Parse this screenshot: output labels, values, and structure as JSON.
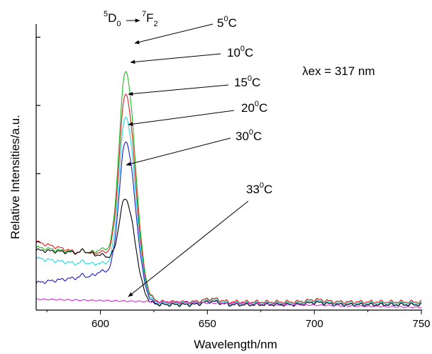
{
  "chart_data": {
    "type": "line",
    "xlabel": "Wavelength/nm",
    "ylabel": "Relative Intensities/a.u.",
    "xlim": [
      570,
      750
    ],
    "ylim": [
      0,
      1.1
    ],
    "x_ticks": [
      600,
      650,
      700,
      750
    ],
    "x_tick_labels": [
      "600",
      "650",
      "700",
      "750"
    ],
    "y_ticks": [
      0.25,
      0.5,
      0.75,
      1.0
    ],
    "y_tick_labels_shown": false,
    "grid": false,
    "transition_label": {
      "upper_level": "D",
      "upper_sup": "5",
      "upper_sub": "0",
      "lower_level": "F",
      "lower_sup": "7",
      "lower_sub": "2"
    },
    "excitation_label": {
      "prefix": "λex = ",
      "value": "317",
      "unit": " nm"
    },
    "series": [
      {
        "name": "5",
        "unit": "C",
        "deg_sup": "0",
        "color": "#22bb22",
        "peak": 1.02,
        "base600": 0.22,
        "baseline_left": 0.23,
        "shoulder": 0.21,
        "tail": 0.03
      },
      {
        "name": "10",
        "unit": "C",
        "deg_sup": "0",
        "color": "#dd2222",
        "peak": 0.93,
        "base600": 0.21,
        "baseline_left": 0.25,
        "shoulder": 0.21,
        "tail": 0.03
      },
      {
        "name": "15",
        "unit": "C",
        "deg_sup": "0",
        "color": "#22dddd",
        "peak": 0.82,
        "base600": 0.17,
        "baseline_left": 0.19,
        "shoulder": 0.17,
        "tail": 0.025
      },
      {
        "name": "20",
        "unit": "C",
        "deg_sup": "0",
        "color": "#1a1acc",
        "peak": 0.71,
        "base600": 0.14,
        "baseline_left": 0.1,
        "shoulder": 0.12,
        "tail": 0.02
      },
      {
        "name": "30",
        "unit": "C",
        "deg_sup": "0",
        "color": "#000000",
        "peak": 0.54,
        "base600": 0.2,
        "baseline_left": 0.22,
        "shoulder": 0.21,
        "tail": 0.02
      },
      {
        "name": "33",
        "unit": "C",
        "deg_sup": "0",
        "color": "#dd22dd",
        "peak": 0.025,
        "base600": 0.02,
        "baseline_left": 0.04,
        "shoulder": 0.03,
        "tail": 0.01
      }
    ]
  }
}
